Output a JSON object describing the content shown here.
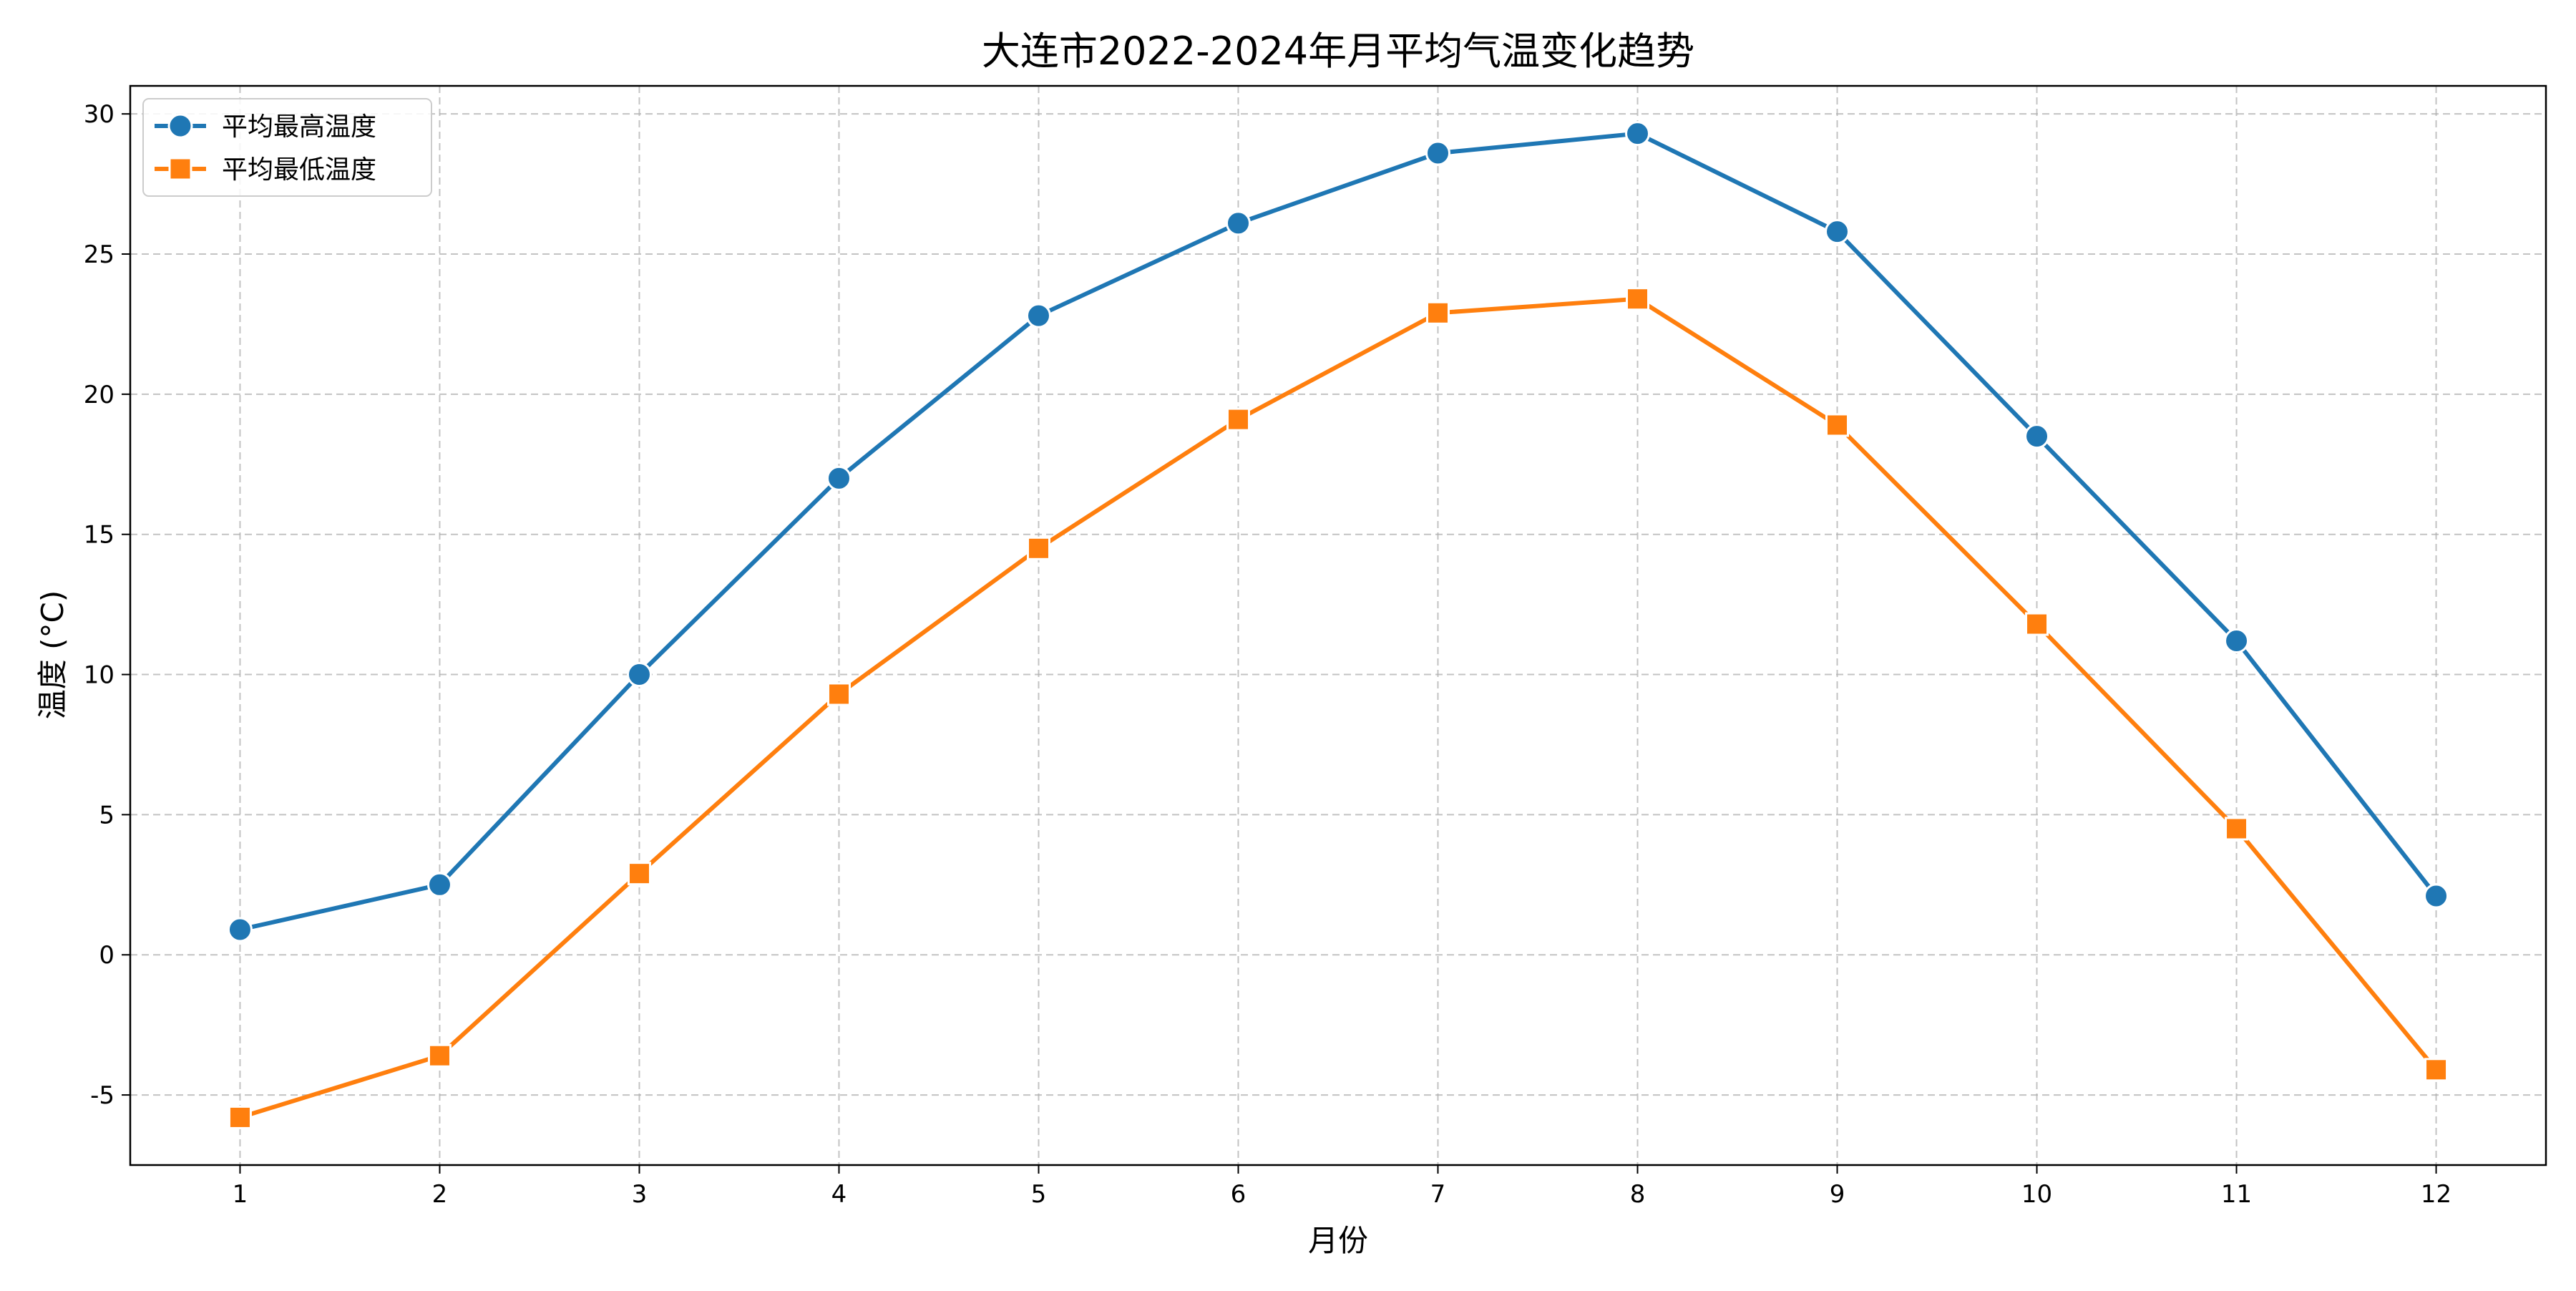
{
  "chart_data": {
    "type": "line",
    "title": "大连市2022-2024年月平均气温变化趋势",
    "xlabel": "月份",
    "ylabel": "温度 (°C)",
    "x": [
      1,
      2,
      3,
      4,
      5,
      6,
      7,
      8,
      9,
      10,
      11,
      12
    ],
    "x_ticks": [
      "1",
      "2",
      "3",
      "4",
      "5",
      "6",
      "7",
      "8",
      "9",
      "10",
      "11",
      "12"
    ],
    "y_ticks": [
      "-5",
      "0",
      "5",
      "10",
      "15",
      "20",
      "25",
      "30"
    ],
    "ylim": [
      -7.5,
      31
    ],
    "xlim": [
      0.45,
      12.55
    ],
    "grid": true,
    "legend_position": "upper-left",
    "series": [
      {
        "name": "平均最高温度",
        "color": "#1f77b4",
        "marker": "circle",
        "values": [
          0.9,
          2.5,
          10.0,
          17.0,
          22.8,
          26.1,
          28.6,
          29.3,
          25.8,
          18.5,
          11.2,
          2.1
        ]
      },
      {
        "name": "平均最低温度",
        "color": "#ff7f0e",
        "marker": "square",
        "values": [
          -5.8,
          -3.6,
          2.9,
          9.3,
          14.5,
          19.1,
          22.9,
          23.4,
          18.9,
          11.8,
          4.5,
          -4.1
        ]
      }
    ]
  }
}
